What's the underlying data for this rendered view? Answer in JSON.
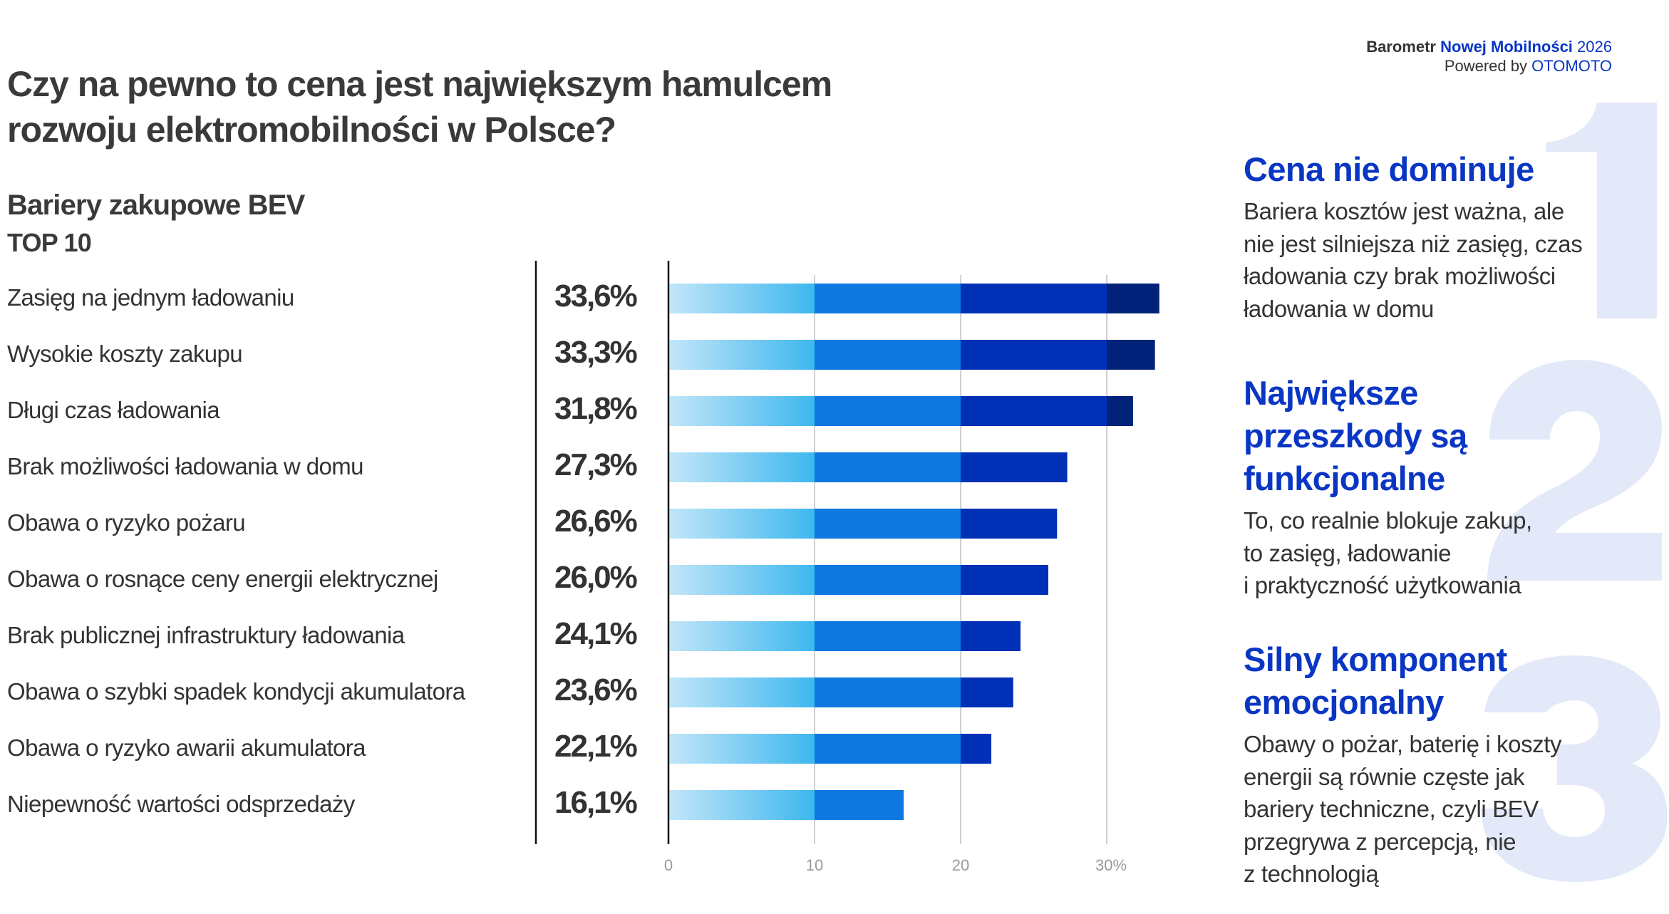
{
  "brand": {
    "line1_prefix": "Barometr",
    "line1_highlight": "Nowej Mobilności",
    "line1_year": "2026",
    "line2_prefix": "Powered by",
    "line2_highlight": "OTOMOTO"
  },
  "page": {
    "title_line1": "Czy na pewno to cena jest największym hamulcem",
    "title_line2": "rozwoju elektromobilności w Polsce?",
    "subtitle": "Bariery zakupowe BEV",
    "subtitle2": "TOP 10"
  },
  "colors": {
    "segment_0_10_start": "#c3e6f9",
    "segment_0_10_end": "#3db7ee",
    "segment_10_20": "#0e78e0",
    "segment_20_30": "#0030b5",
    "segment_30_plus": "#002279",
    "accent": "#0a36c4",
    "big_number": "#e3e9f8"
  },
  "chart_data": {
    "type": "bar",
    "orientation": "horizontal",
    "title": "Bariery zakupowe BEV",
    "subtitle": "TOP 10",
    "categories": [
      "Zasięg na jednym ładowaniu",
      "Wysokie koszty zakupu",
      "Długi czas ładowania",
      "Brak możliwości ładowania w domu",
      "Obawa o ryzyko pożaru",
      "Obawa o rosnące ceny energii elektrycznej",
      "Brak publicznej infrastruktury ładowania",
      "Obawa o szybki spadek kondycji akumulatora",
      "Obawa o ryzyko awarii akumulatora",
      "Niepewność wartości odsprzedaży"
    ],
    "values": [
      33.6,
      33.3,
      31.8,
      27.3,
      26.6,
      26.0,
      24.1,
      23.6,
      22.1,
      16.1
    ],
    "value_labels": [
      "33,6%",
      "33,3%",
      "31,8%",
      "27,3%",
      "26,6%",
      "26,0%",
      "24,1%",
      "23,6%",
      "22,1%",
      "16,1%"
    ],
    "xlabel": "",
    "ylabel": "",
    "xlim": [
      0,
      35
    ],
    "x_ticks": [
      0,
      10,
      20,
      30
    ],
    "x_tick_labels": [
      "0",
      "10",
      "20",
      "30%"
    ],
    "grid": true,
    "color_bands": [
      0,
      10,
      20,
      30
    ]
  },
  "insights": [
    {
      "number": "1",
      "heading": "Cena nie dominuje",
      "body": [
        "Bariera kosztów jest ważna, ale",
        "nie jest silniejsza niż zasięg, czas",
        "ładowania czy brak możliwości",
        "ładowania w domu"
      ]
    },
    {
      "number": "2",
      "heading": [
        "Największe",
        "przeszkody są",
        "funkcjonalne"
      ],
      "body": [
        "To, co realnie blokuje zakup,",
        "to zasięg, ładowanie",
        "i praktyczność użytkowania"
      ]
    },
    {
      "number": "3",
      "heading": [
        "Silny komponent",
        "emocjonalny"
      ],
      "body": [
        "Obawy o pożar, baterię i koszty",
        "energii są równie częste jak",
        "bariery techniczne, czyli BEV",
        "przegrywa z percepcją, nie",
        "z technologią"
      ]
    }
  ]
}
